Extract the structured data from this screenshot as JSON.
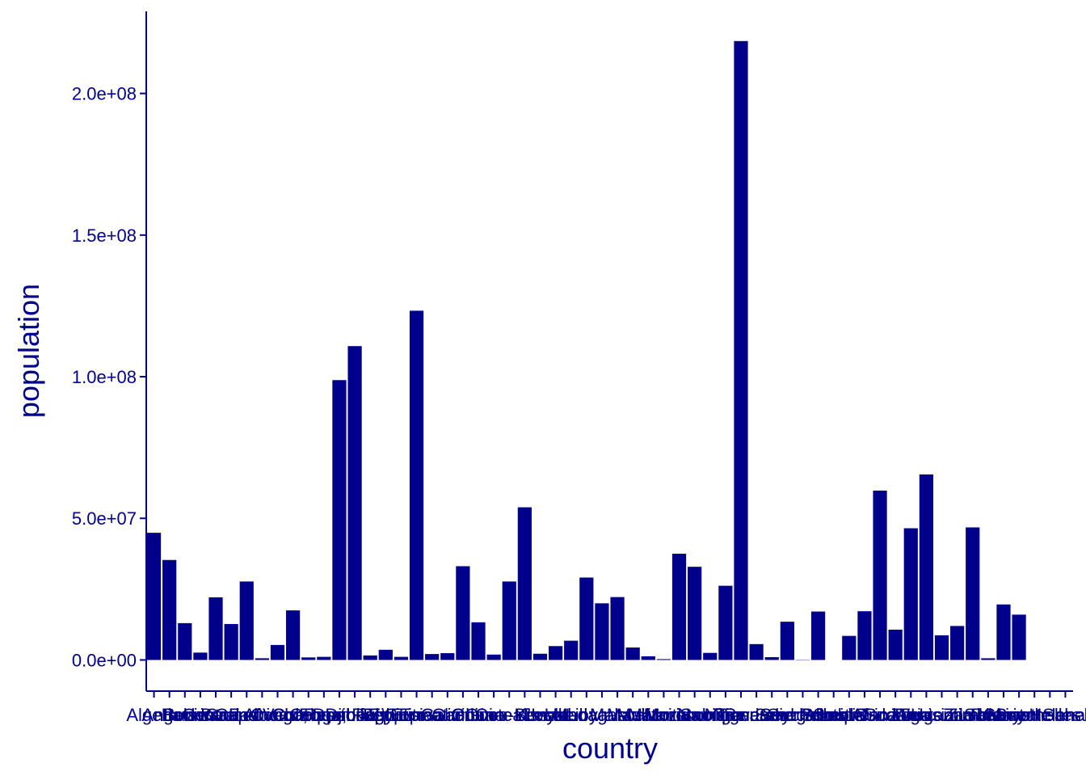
{
  "chart_data": {
    "type": "bar",
    "xlabel": "country",
    "ylabel": "population",
    "ylim": [
      -11000000,
      229000000
    ],
    "y_ticks": [
      0,
      50000000,
      100000000,
      150000000,
      200000000
    ],
    "y_tick_labels": [
      "0.0e+00",
      "5.0e+07",
      "1.0e+08",
      "1.5e+08",
      "2.0e+08"
    ],
    "bar_color": "#00008B",
    "axis_color": "#00008B",
    "grid": false,
    "legend": "none",
    "categories": [
      "Algeria",
      "Angola",
      "Benin",
      "Botswana",
      "Burkina Faso",
      "Burundi",
      "Cameroon",
      "Cape Verde",
      "Central African Republic",
      "Chad",
      "Comoros",
      "Congo, Dem. Rep.",
      "Congo, Rep.",
      "Djibouti",
      "Equatorial Guinea",
      "Egypt",
      "Ethiopia",
      "Eritrea",
      "Eswatini",
      "Gabon",
      "Gambia",
      "Ghana",
      "Guinea",
      "Guinea-Bissau",
      "Cote d'Ivoire",
      "Kenya",
      "Lesotho",
      "Liberia",
      "Libya",
      "Madagascar",
      "Malawi",
      "Mali",
      "Mauritania",
      "Mauritius",
      "Morocco",
      "Mozambique",
      "Namibia",
      "Niger",
      "Nigeria",
      "Rwanda",
      "Sao Tome and Principe",
      "Senegal",
      "Seychelles",
      "Sierra Leone",
      "Somalia",
      "South Africa",
      "South Sudan",
      "Sudan",
      "Tanzania",
      "Togo",
      "Tunisia",
      "Uganda",
      "Western Sahara",
      "Zambia",
      "Zimbabwe",
      "Reunion",
      "Mayotte",
      "Saint Helena",
      "Seychelles Is.",
      "Sahel"
    ],
    "values": [
      44900000,
      35300000,
      13000000,
      2600000,
      22100000,
      12700000,
      27700000,
      600000,
      5300000,
      17500000,
      900000,
      1100000,
      98800000,
      110800000,
      1600000,
      3600000,
      1100000,
      123300000,
      2100000,
      2400000,
      33100000,
      13300000,
      1900000,
      27700000,
      53900000,
      2200000,
      4900000,
      6800000,
      29100000,
      20000000,
      22200000,
      4400000,
      1300000,
      300000,
      37500000,
      32900000,
      2500000,
      26200000,
      218500000,
      5600000,
      1000000,
      13500000,
      100000,
      17100000,
      0,
      8500000,
      17200000,
      59800000,
      10700000,
      46500000,
      65500000,
      8700000,
      12000000,
      46800000,
      600000,
      19600000,
      16000000,
      0,
      0,
      0
    ]
  }
}
